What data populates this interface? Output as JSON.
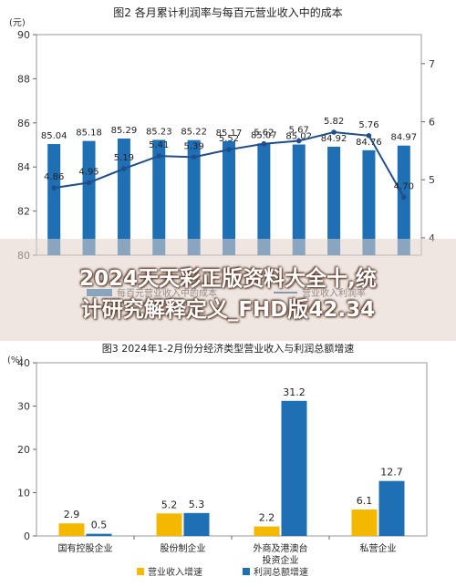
{
  "chart_data": [
    {
      "type": "bar+line",
      "title": "图2  各月累计利润率与每百元营业收入中的成本",
      "categories": [
        "",
        "",
        "",
        "",
        "",
        "",
        "",
        "",
        "",
        "",
        ""
      ],
      "left_axis_unit": "(元)",
      "left_ticks": [
        "80",
        "82",
        "84",
        "86",
        "88",
        "90"
      ],
      "right_ticks": [
        "4",
        "5",
        "6",
        "7"
      ],
      "ylim_left": [
        80,
        90
      ],
      "ylim_right": [
        3.7,
        7.5
      ],
      "series": [
        {
          "name": "每百元营业收入中的成本",
          "type": "bar",
          "axis": "left",
          "values": [
            85.04,
            85.18,
            85.29,
            85.23,
            85.22,
            85.17,
            85.07,
            85.02,
            84.92,
            84.76,
            84.97
          ],
          "labels": [
            "85.04",
            "85.18",
            "85.29",
            "85.23",
            "85.22",
            "85.17",
            "85.07",
            "85.02",
            "84.92",
            "84.76",
            "84.97"
          ],
          "color": "#1F6FB5"
        },
        {
          "name": "营业收入利润率",
          "type": "line",
          "axis": "right",
          "values": [
            4.86,
            4.95,
            5.19,
            5.41,
            5.39,
            5.52,
            5.62,
            5.67,
            5.82,
            5.76,
            4.7
          ],
          "labels": [
            "4.86",
            "4.95",
            "5.19",
            "5.41",
            "5.39",
            "5.52",
            "5.62",
            "5.67",
            "5.82",
            "5.76",
            "4.70"
          ],
          "color": "#1F4E8C"
        }
      ],
      "legend": {
        "bar_label": "每百元营业收入中的成本",
        "line_label": "营业收入利润率",
        "position": "bottom"
      }
    },
    {
      "type": "bar",
      "title": "图3  2024年1-2月份分经济类型营业收入与利润总额增速",
      "ylabel": "(%)",
      "categories": [
        "国有控股企业",
        "股份制企业",
        "外商及港澳台投资企业",
        "私营企业"
      ],
      "category_lines": [
        [
          "国有控股企业"
        ],
        [
          "股份制企业"
        ],
        [
          "外商及港澳台",
          "投资企业"
        ],
        [
          "私营企业"
        ]
      ],
      "ticks": [
        "0",
        "10",
        "20",
        "30",
        "40"
      ],
      "ylim": [
        0,
        40
      ],
      "series": [
        {
          "name": "营业收入增速",
          "values": [
            2.9,
            5.2,
            2.2,
            6.1
          ],
          "labels": [
            "2.9",
            "5.2",
            "2.2",
            "6.1"
          ],
          "color": "#F5B800"
        },
        {
          "name": "利润总额增速",
          "values": [
            0.5,
            5.3,
            31.2,
            12.7
          ],
          "labels": [
            "0.5",
            "5.3",
            "31.2",
            "12.7"
          ],
          "color": "#1F6FB5"
        }
      ],
      "legend": {
        "position": "bottom"
      }
    }
  ],
  "overlay": {
    "line1": "2024天天彩正版资料大全十,统",
    "line2": "计研究解释定义_FHD版42.34"
  }
}
